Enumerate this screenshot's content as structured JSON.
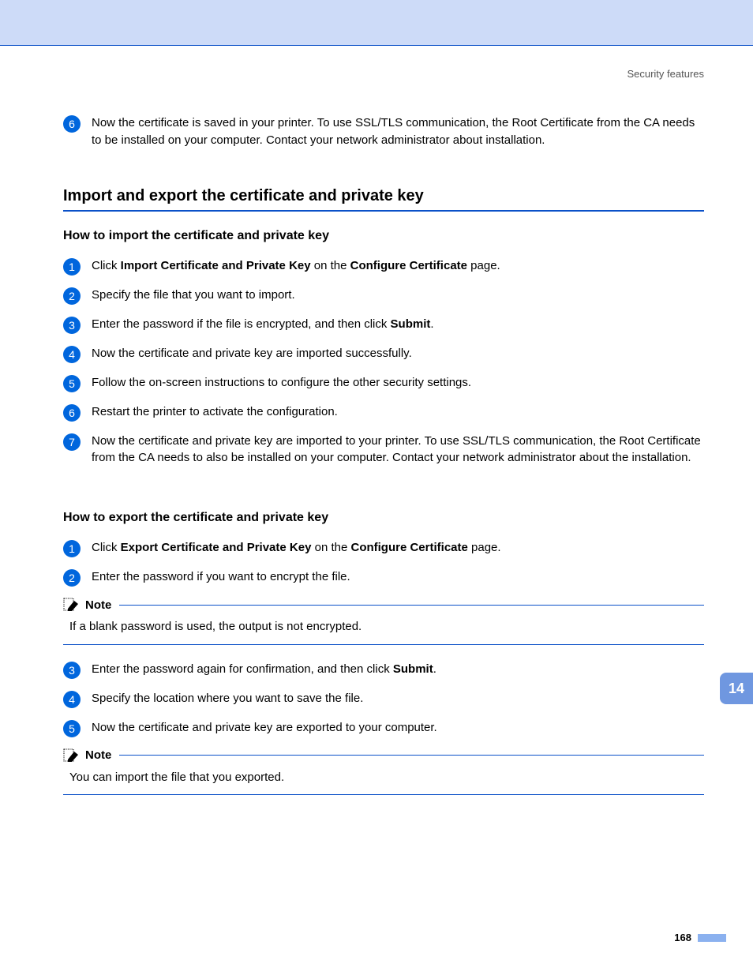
{
  "header": {
    "section_label": "Security features"
  },
  "colors": {
    "top_band": "#cddbf8",
    "rule": "#0a50c8",
    "bullet": "#0066dd",
    "tab": "#6f97e0",
    "footer_bar": "#8bb1ef"
  },
  "intro_step": {
    "number": "6",
    "text": "Now the certificate is saved in your printer. To use SSL/TLS communication, the Root Certificate from the CA needs to be installed on your computer. Contact your network administrator about installation."
  },
  "section": {
    "title": "Import and export the certificate and private key"
  },
  "import": {
    "heading": "How to import the certificate and private key",
    "steps": [
      {
        "n": "1",
        "html": "Click <b>Import Certificate and Private Key</b> on the <b>Configure Certificate</b> page."
      },
      {
        "n": "2",
        "html": "Specify the file that you want to import."
      },
      {
        "n": "3",
        "html": "Enter the password if the file is encrypted, and then click <b>Submit</b>."
      },
      {
        "n": "4",
        "html": "Now the certificate and private key are imported successfully."
      },
      {
        "n": "5",
        "html": "Follow the on-screen instructions to configure the other security settings."
      },
      {
        "n": "6",
        "html": "Restart the printer to activate the configuration."
      },
      {
        "n": "7",
        "html": "Now the certificate and private key are imported to your printer. To use SSL/TLS communication, the Root Certificate from the CA needs to also be installed on your computer. Contact your network administrator about the installation."
      }
    ]
  },
  "export": {
    "heading": "How to export the certificate and private key",
    "steps_a": [
      {
        "n": "1",
        "html": "Click <b>Export Certificate and Private Key</b> on the <b>Configure Certificate</b> page."
      },
      {
        "n": "2",
        "html": "Enter the password if you want to encrypt the file."
      }
    ],
    "note1": {
      "label": "Note",
      "text": "If a blank password is used, the output is not encrypted."
    },
    "steps_b": [
      {
        "n": "3",
        "html": "Enter the password again for confirmation, and then click <b>Submit</b>."
      },
      {
        "n": "4",
        "html": "Specify the location where you want to save the file."
      },
      {
        "n": "5",
        "html": "Now the certificate and private key are exported to your computer."
      }
    ],
    "note2": {
      "label": "Note",
      "text": "You can import the file that you exported."
    }
  },
  "chapter_tab": "14",
  "page_number": "168"
}
